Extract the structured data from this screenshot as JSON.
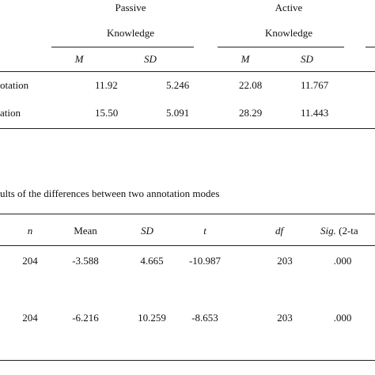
{
  "table1": {
    "groups": [
      "Passive",
      "Active"
    ],
    "group_sub": [
      "Knowledge",
      "Knowledge"
    ],
    "columns": [
      "M",
      "SD",
      "M",
      "SD"
    ],
    "rows": [
      [
        "otation",
        "11.92",
        "5.246",
        "22.08",
        "11.767"
      ],
      [
        "ation",
        "15.50",
        "5.091",
        "28.29",
        "11.443"
      ]
    ]
  },
  "caption": "ults of the differences between two annotation modes",
  "table2": {
    "columns": [
      "n",
      "Mean",
      "SD",
      "t",
      "df"
    ],
    "sig_label": "Sig.",
    "sig_rest": "(2-ta",
    "rows": [
      [
        "204",
        "-3.588",
        "4.665",
        "-10.987",
        "203",
        ".000"
      ],
      [
        "204",
        "-6.216",
        "10.259",
        "-8.653",
        "203",
        ".000"
      ]
    ]
  }
}
